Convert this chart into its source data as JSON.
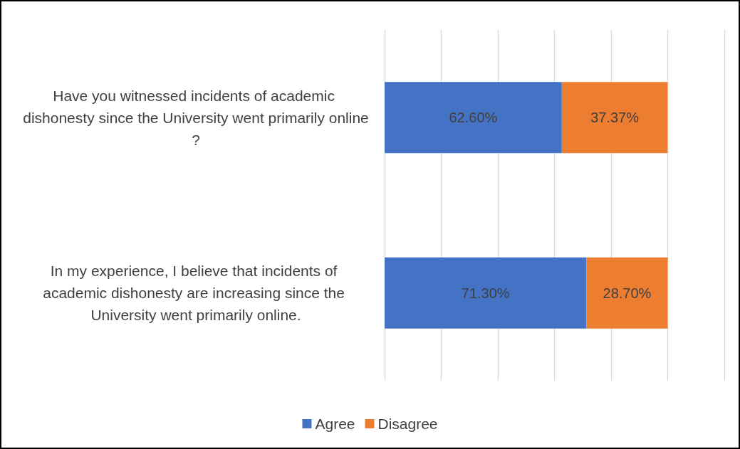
{
  "chart_data": {
    "type": "bar",
    "orientation": "horizontal",
    "stacked": true,
    "categories": [
      "Have you witnessed incidents of academic dishonesty since the University went primarily online?",
      "In my experience, I believe that incidents of academic dishonesty are increasing since the University went primarily online."
    ],
    "series": [
      {
        "name": "Agree",
        "color": "#4472c4",
        "values": [
          62.6,
          71.3
        ],
        "value_labels": [
          "62.60%",
          "71.30%"
        ]
      },
      {
        "name": "Disagree",
        "color": "#ed7d31",
        "values": [
          37.37,
          28.7
        ],
        "value_labels": [
          "37.37%",
          "28.70%"
        ]
      }
    ],
    "xlim": [
      0,
      120
    ],
    "xticks": [
      {
        "value": 0,
        "label": null
      },
      {
        "value": 20,
        "label": null
      },
      {
        "value": 40,
        "label": null
      },
      {
        "value": 60,
        "label": null
      },
      {
        "value": 80,
        "label": null
      },
      {
        "value": 100,
        "label": null
      },
      {
        "value": 120,
        "label": null
      }
    ],
    "tick_labels": "y",
    "grid": "x",
    "legend": "bottom"
  }
}
